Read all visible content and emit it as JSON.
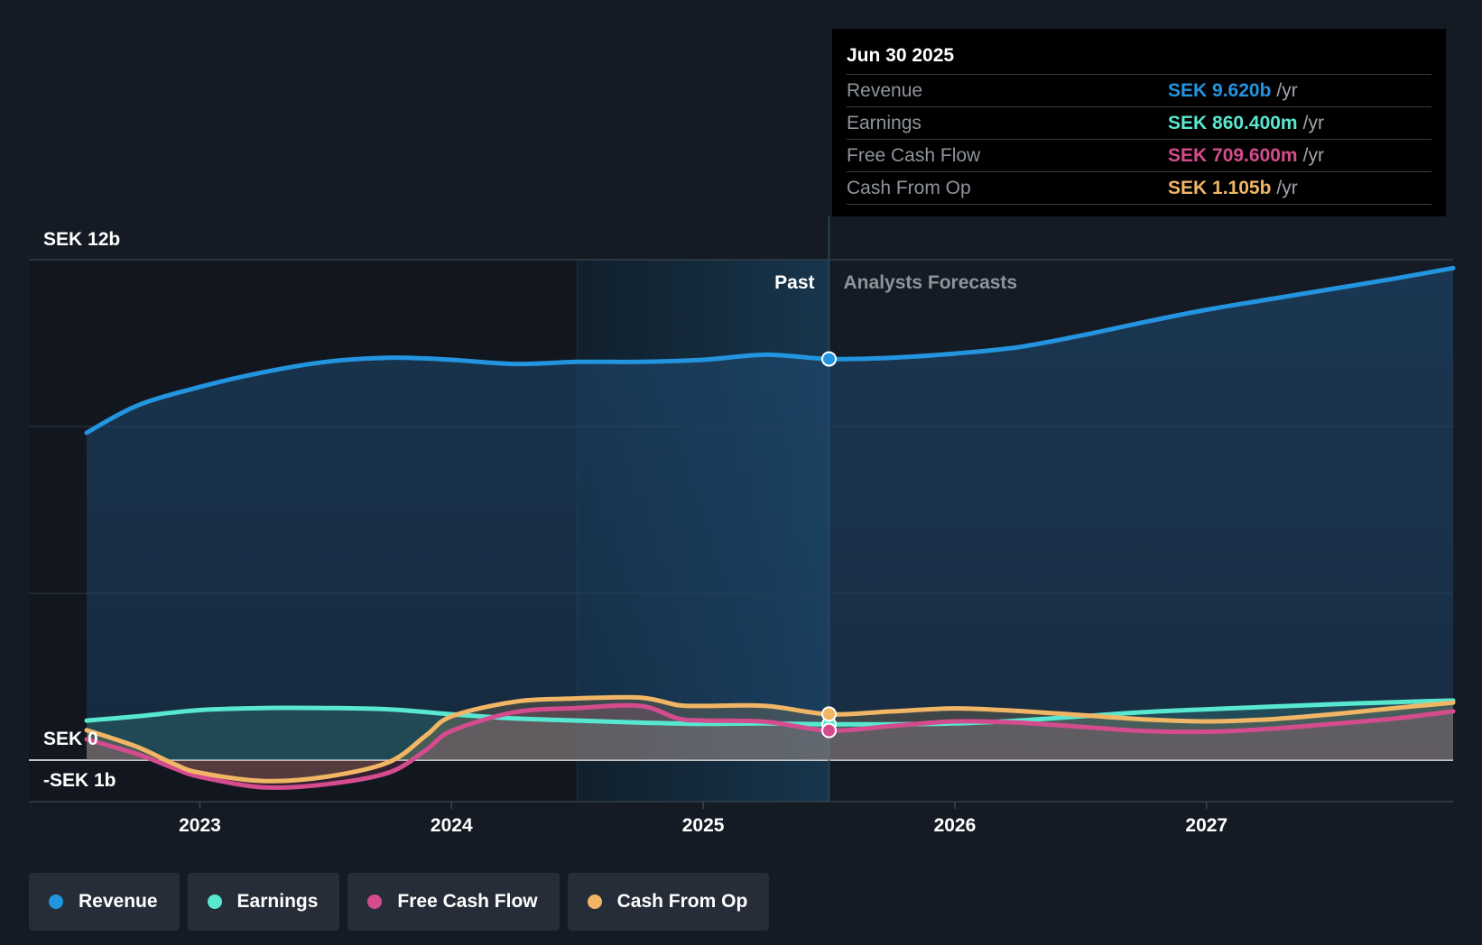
{
  "chart_data": {
    "type": "line",
    "x_range": [
      2022.55,
      2027.98
    ],
    "y_range": [
      -1.0,
      12.0
    ],
    "y_tick_labels": [
      {
        "value": 12,
        "label": "SEK 12b"
      },
      {
        "value": 0,
        "label": "SEK 0"
      },
      {
        "value": -1,
        "label": "-SEK 1b"
      }
    ],
    "x_ticks": [
      2023,
      2024,
      2025,
      2026,
      2027
    ],
    "x_tick_labels": [
      "2023",
      "2024",
      "2025",
      "2026",
      "2027"
    ],
    "past_label": "Past",
    "forecast_label": "Analysts Forecasts",
    "divider_x": 2025.5,
    "highlight_start_x": 2024.5,
    "series": [
      {
        "name": "Revenue",
        "color": "#2394df",
        "points": [
          [
            2022.55,
            7.85
          ],
          [
            2022.75,
            8.5
          ],
          [
            2023.0,
            8.95
          ],
          [
            2023.25,
            9.3
          ],
          [
            2023.5,
            9.55
          ],
          [
            2023.75,
            9.65
          ],
          [
            2024.0,
            9.6
          ],
          [
            2024.25,
            9.5
          ],
          [
            2024.5,
            9.55
          ],
          [
            2024.75,
            9.55
          ],
          [
            2025.0,
            9.6
          ],
          [
            2025.25,
            9.72
          ],
          [
            2025.5,
            9.62
          ],
          [
            2025.75,
            9.65
          ],
          [
            2026.0,
            9.75
          ],
          [
            2026.25,
            9.9
          ],
          [
            2026.5,
            10.18
          ],
          [
            2026.75,
            10.5
          ],
          [
            2027.0,
            10.8
          ],
          [
            2027.25,
            11.05
          ],
          [
            2027.5,
            11.3
          ],
          [
            2027.75,
            11.55
          ],
          [
            2027.98,
            11.8
          ]
        ]
      },
      {
        "name": "Earnings",
        "color": "#58e8d0",
        "points": [
          [
            2022.55,
            0.95
          ],
          [
            2022.75,
            1.05
          ],
          [
            2023.0,
            1.2
          ],
          [
            2023.25,
            1.25
          ],
          [
            2023.5,
            1.25
          ],
          [
            2023.75,
            1.22
          ],
          [
            2024.0,
            1.1
          ],
          [
            2024.25,
            1.0
          ],
          [
            2024.5,
            0.95
          ],
          [
            2024.75,
            0.9
          ],
          [
            2025.0,
            0.87
          ],
          [
            2025.25,
            0.88
          ],
          [
            2025.5,
            0.86
          ],
          [
            2025.75,
            0.86
          ],
          [
            2026.0,
            0.88
          ],
          [
            2026.25,
            0.95
          ],
          [
            2026.5,
            1.05
          ],
          [
            2026.75,
            1.15
          ],
          [
            2027.0,
            1.22
          ],
          [
            2027.25,
            1.28
          ],
          [
            2027.5,
            1.34
          ],
          [
            2027.75,
            1.39
          ],
          [
            2027.98,
            1.43
          ]
        ]
      },
      {
        "name": "Free Cash Flow",
        "color": "#d44c8e",
        "points": [
          [
            2022.55,
            0.5
          ],
          [
            2022.75,
            0.15
          ],
          [
            2022.9,
            -0.2
          ],
          [
            2023.0,
            -0.4
          ],
          [
            2023.25,
            -0.65
          ],
          [
            2023.5,
            -0.58
          ],
          [
            2023.75,
            -0.3
          ],
          [
            2023.9,
            0.25
          ],
          [
            2024.0,
            0.7
          ],
          [
            2024.25,
            1.15
          ],
          [
            2024.5,
            1.25
          ],
          [
            2024.75,
            1.3
          ],
          [
            2024.9,
            1.0
          ],
          [
            2025.0,
            0.95
          ],
          [
            2025.25,
            0.92
          ],
          [
            2025.5,
            0.71
          ],
          [
            2025.75,
            0.82
          ],
          [
            2026.0,
            0.93
          ],
          [
            2026.25,
            0.9
          ],
          [
            2026.5,
            0.8
          ],
          [
            2026.75,
            0.7
          ],
          [
            2027.0,
            0.68
          ],
          [
            2027.25,
            0.75
          ],
          [
            2027.5,
            0.87
          ],
          [
            2027.75,
            1.0
          ],
          [
            2027.98,
            1.17
          ]
        ]
      },
      {
        "name": "Cash From Op",
        "color": "#f0b665",
        "points": [
          [
            2022.55,
            0.72
          ],
          [
            2022.75,
            0.32
          ],
          [
            2022.9,
            -0.1
          ],
          [
            2023.0,
            -0.3
          ],
          [
            2023.25,
            -0.5
          ],
          [
            2023.5,
            -0.4
          ],
          [
            2023.75,
            -0.05
          ],
          [
            2023.9,
            0.6
          ],
          [
            2024.0,
            1.05
          ],
          [
            2024.25,
            1.4
          ],
          [
            2024.5,
            1.48
          ],
          [
            2024.75,
            1.5
          ],
          [
            2024.9,
            1.32
          ],
          [
            2025.0,
            1.3
          ],
          [
            2025.25,
            1.3
          ],
          [
            2025.5,
            1.1
          ],
          [
            2025.75,
            1.17
          ],
          [
            2026.0,
            1.24
          ],
          [
            2026.25,
            1.18
          ],
          [
            2026.5,
            1.08
          ],
          [
            2026.75,
            0.98
          ],
          [
            2027.0,
            0.93
          ],
          [
            2027.25,
            0.98
          ],
          [
            2027.5,
            1.1
          ],
          [
            2027.75,
            1.25
          ],
          [
            2027.98,
            1.38
          ]
        ]
      }
    ],
    "tooltip": {
      "date": "Jun 30 2025",
      "rows": [
        {
          "label": "Revenue",
          "value": "SEK 9.620b",
          "unit": "/yr",
          "color": "#2394df"
        },
        {
          "label": "Earnings",
          "value": "SEK 860.400m",
          "unit": "/yr",
          "color": "#58e8d0"
        },
        {
          "label": "Free Cash Flow",
          "value": "SEK 709.600m",
          "unit": "/yr",
          "color": "#d44c8e"
        },
        {
          "label": "Cash From Op",
          "value": "SEK 1.105b",
          "unit": "/yr",
          "color": "#f0b665"
        }
      ]
    },
    "markers": [
      {
        "series": "Revenue",
        "x": 2025.5,
        "y": 9.62
      },
      {
        "series": "Earnings",
        "x": 2025.5,
        "y": 0.86
      },
      {
        "series": "Free Cash Flow",
        "x": 2025.5,
        "y": 0.71
      },
      {
        "series": "Cash From Op",
        "x": 2025.5,
        "y": 1.105
      }
    ]
  },
  "legend": [
    {
      "label": "Revenue",
      "color": "#2394df"
    },
    {
      "label": "Earnings",
      "color": "#58e8d0"
    },
    {
      "label": "Free Cash Flow",
      "color": "#d44c8e"
    },
    {
      "label": "Cash From Op",
      "color": "#f0b665"
    }
  ]
}
